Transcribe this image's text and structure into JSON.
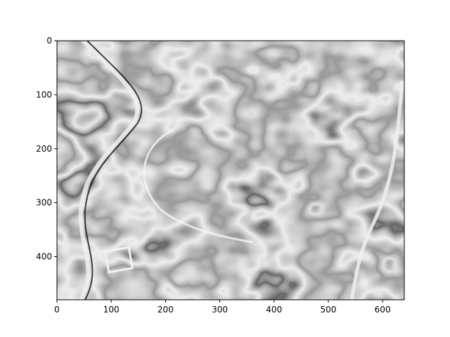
{
  "chart_data": {
    "type": "heatmap",
    "title": "",
    "xlabel": "",
    "ylabel": "",
    "colormap": "gray",
    "image_width": 640,
    "image_height": 480,
    "xlim": [
      0,
      640
    ],
    "ylim": [
      480,
      0
    ],
    "x_ticks": [
      0,
      100,
      200,
      300,
      400,
      500,
      600
    ],
    "x_tick_labels": [
      "0",
      "100",
      "200",
      "300",
      "400",
      "500",
      "600"
    ],
    "y_ticks": [
      0,
      100,
      200,
      300,
      400
    ],
    "y_tick_labels": [
      "0",
      "100",
      "200",
      "300",
      "400"
    ],
    "grid": false
  },
  "colors": {
    "frame": "#000000",
    "background": "#ffffff"
  }
}
